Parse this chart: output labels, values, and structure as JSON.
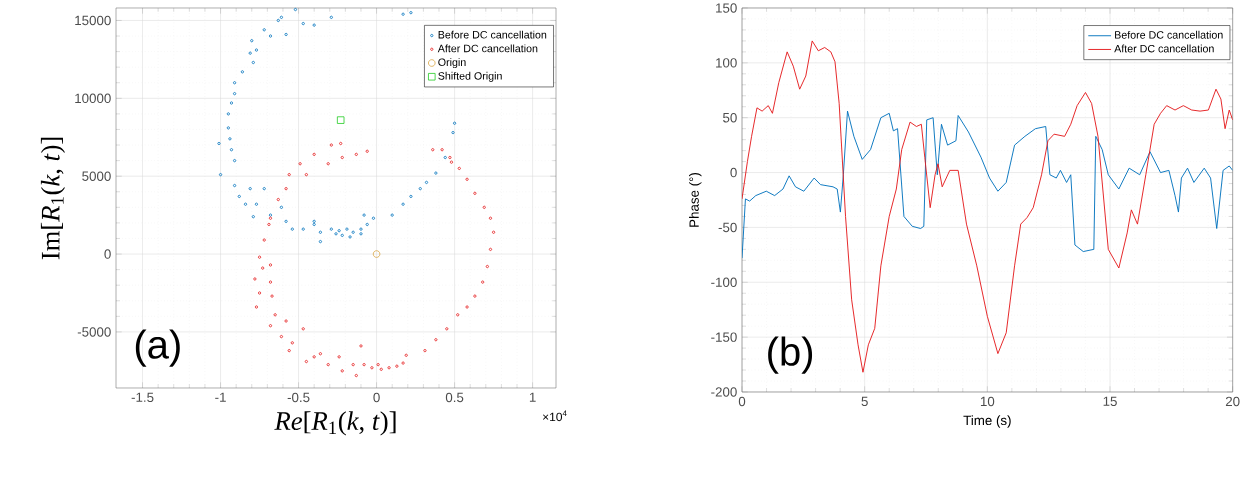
{
  "chart_data": [
    {
      "type": "scatter",
      "xlabel": "*Re*[*R*$_{1}$(*k*, *t*)]",
      "ylabel": "Im[*R*$_{1}$(*k*, *t*)]",
      "xlim": [
        -1.67,
        1.15
      ],
      "ylim": [
        -8600,
        15800
      ],
      "xticks": [
        -1.5,
        -1,
        -0.5,
        0,
        0.5,
        1
      ],
      "yticks": [
        -5000,
        0,
        5000,
        10000,
        15000
      ],
      "grid": true,
      "legend": "top right",
      "annotations": [
        "(a)",
        "×10$^{4}$"
      ],
      "series": [
        {
          "name": "Before DC cancellation",
          "color": "#0072bd",
          "marker": "circle",
          "x": [
            -0.52,
            -0.61,
            -0.47,
            -0.29,
            0.17,
            -0.72,
            -0.8,
            -0.81,
            -0.79,
            -0.86,
            -0.91,
            -0.91,
            -0.93,
            -0.95,
            -0.95,
            -0.94,
            -0.93,
            -0.91,
            -1.01,
            -1.0,
            -0.91,
            -0.88,
            -0.81,
            -0.72,
            -0.84,
            -0.77,
            -0.79,
            -0.61,
            -0.58,
            -0.54,
            -0.47,
            -0.4,
            -0.36,
            -0.29,
            -0.24,
            -0.19,
            -0.15,
            -0.1,
            -0.06,
            -0.02,
            0.1,
            0.17,
            0.22,
            0.28,
            0.32,
            0.38,
            0.44,
            0.49,
            0.5,
            -0.22,
            -0.26,
            -0.36,
            -0.17,
            -0.1,
            -0.4,
            -0.68,
            -0.08,
            -0.63,
            -0.68,
            -0.77,
            -0.58,
            0.22,
            -0.4
          ],
          "values": [
            15700,
            15200,
            14800,
            15200,
            15400,
            14400,
            13700,
            12900,
            12300,
            11700,
            11000,
            10300,
            9700,
            9000,
            8100,
            7400,
            6700,
            6000,
            7100,
            5100,
            4400,
            3700,
            4200,
            4200,
            3200,
            3200,
            2400,
            3000,
            2100,
            1600,
            1600,
            1900,
            1400,
            1600,
            1500,
            1600,
            1400,
            1600,
            1900,
            2300,
            2500,
            3200,
            3700,
            4200,
            4600,
            5200,
            6200,
            7800,
            8400,
            1200,
            1300,
            800,
            1100,
            1300,
            2100,
            2500,
            2500,
            15000,
            14000,
            13100,
            14100,
            15500,
            14700
          ]
        },
        {
          "name": "After DC cancellation",
          "color": "#e41a1c",
          "marker": "circle",
          "x": [
            -0.29,
            -0.23,
            -0.4,
            -0.31,
            -0.22,
            -0.13,
            -0.06,
            -0.49,
            -0.45,
            -0.56,
            -0.58,
            -0.63,
            -0.68,
            -0.69,
            -0.72,
            -0.75,
            -0.73,
            -0.68,
            -0.78,
            -0.67,
            -0.65,
            -0.77,
            -0.68,
            -0.58,
            -0.61,
            -0.54,
            -0.47,
            -0.56,
            -0.45,
            -0.36,
            -0.31,
            -0.24,
            -0.22,
            -0.15,
            -0.13,
            -0.08,
            -0.03,
            0.01,
            0.03,
            0.08,
            0.13,
            0.17,
            0.19,
            0.31,
            0.38,
            0.45,
            0.52,
            0.58,
            0.63,
            0.68,
            0.71,
            0.73,
            0.75,
            0.73,
            0.69,
            0.63,
            0.58,
            0.53,
            0.48,
            0.42,
            0.36,
            0.47,
            -0.4,
            -0.1,
            -0.68,
            -0.75
          ],
          "values": [
            7000,
            7100,
            6400,
            5800,
            6200,
            6400,
            6600,
            5800,
            5100,
            5100,
            4200,
            3500,
            2300,
            1900,
            900,
            -200,
            -900,
            -1800,
            -1600,
            -2700,
            -3900,
            -3400,
            -4600,
            -4300,
            -5300,
            -5700,
            -4800,
            -6200,
            -6900,
            -6400,
            -7100,
            -6600,
            -7500,
            -7100,
            -7800,
            -7100,
            -7300,
            -7100,
            -7400,
            -7300,
            -7200,
            -7000,
            -6500,
            -6200,
            -5500,
            -4800,
            -3900,
            -3400,
            -2700,
            -1800,
            -800,
            300,
            1400,
            2300,
            3000,
            3900,
            4800,
            5500,
            5900,
            6700,
            6700,
            6200,
            -6600,
            -5900,
            -700,
            -2500
          ]
        },
        {
          "name": "Origin",
          "color": "#d9a441",
          "marker": "circle",
          "x": [
            0
          ],
          "values": [
            0
          ]
        },
        {
          "name": "Shifted Origin",
          "color": "#22cc22",
          "marker": "square",
          "x": [
            -0.23
          ],
          "values": [
            8600
          ]
        }
      ]
    },
    {
      "type": "line",
      "xlabel": "Time (s)",
      "ylabel": "Phase (°)",
      "xlim": [
        0,
        20
      ],
      "ylim": [
        -200,
        150
      ],
      "xticks": [
        0,
        5,
        10,
        15,
        20
      ],
      "yticks": [
        -200,
        -150,
        -100,
        -50,
        0,
        50,
        100,
        150
      ],
      "grid": true,
      "legend": "top right",
      "annotations": [
        "(b)"
      ],
      "series": [
        {
          "name": "Before DC cancellation",
          "color": "#0072bd",
          "x": [
            0,
            0.14,
            0.31,
            0.56,
            0.99,
            1.33,
            1.67,
            1.92,
            2.18,
            2.52,
            2.94,
            3.2,
            3.71,
            3.88,
            4.01,
            4.13,
            4.3,
            4.56,
            4.9,
            5.24,
            5.66,
            6.0,
            6.17,
            6.34,
            6.6,
            6.94,
            7.28,
            7.41,
            7.53,
            7.79,
            7.96,
            8.13,
            8.38,
            8.72,
            8.81,
            9.23,
            9.74,
            10.09,
            10.43,
            10.77,
            11.11,
            11.53,
            11.96,
            12.38,
            12.55,
            12.81,
            12.98,
            13.23,
            13.4,
            13.57,
            13.91,
            14.34,
            14.42,
            14.68,
            14.93,
            15.36,
            15.78,
            16.21,
            16.63,
            17.06,
            17.4,
            17.65,
            17.79,
            17.91,
            18.16,
            18.42,
            18.84,
            19.1,
            19.35,
            19.61,
            19.86,
            20.0
          ],
          "values": [
            -78,
            -24,
            -26,
            -21,
            -17,
            -21,
            -15,
            -3,
            -13,
            -17,
            -5,
            -11,
            -13,
            -15,
            -36,
            -2,
            56,
            33,
            12,
            21,
            50,
            54,
            38,
            40,
            -40,
            -49,
            -51,
            -49,
            48,
            50,
            -2,
            44,
            25,
            29,
            52,
            37,
            14,
            -5,
            -17,
            -9,
            25,
            33,
            40,
            42,
            -2,
            -5,
            2,
            -9,
            -2,
            -66,
            -72,
            -70,
            33,
            21,
            -2,
            -15,
            4,
            -2,
            19,
            0,
            2,
            -21,
            -36,
            -5,
            4,
            -9,
            4,
            -5,
            -51,
            2,
            6,
            2
          ]
        },
        {
          "name": "After DC cancellation",
          "color": "#e41a1c",
          "x": [
            0,
            0.22,
            0.39,
            0.61,
            0.82,
            1.07,
            1.24,
            1.5,
            1.84,
            2.09,
            2.35,
            2.6,
            2.86,
            3.11,
            3.37,
            3.62,
            3.79,
            3.96,
            4.22,
            4.47,
            4.73,
            4.93,
            5.15,
            5.41,
            5.66,
            6.0,
            6.29,
            6.51,
            6.85,
            7.11,
            7.31,
            7.45,
            7.67,
            7.87,
            7.99,
            8.16,
            8.47,
            8.81,
            9.15,
            9.57,
            10.0,
            10.43,
            10.77,
            11.11,
            11.36,
            11.62,
            11.87,
            12.21,
            12.47,
            12.72,
            13.15,
            13.4,
            13.66,
            14.0,
            14.25,
            14.51,
            14.93,
            15.36,
            15.7,
            15.87,
            16.12,
            16.46,
            16.8,
            17.06,
            17.31,
            17.65,
            17.99,
            18.33,
            18.67,
            19.01,
            19.32,
            19.52,
            19.69,
            19.86,
            20.0
          ],
          "values": [
            -24,
            10,
            33,
            59,
            56,
            61,
            54,
            82,
            110,
            97,
            76,
            88,
            120,
            111,
            114,
            110,
            101,
            63,
            -40,
            -116,
            -157,
            -182,
            -157,
            -142,
            -85,
            -40,
            -15,
            21,
            46,
            42,
            44,
            14,
            -32,
            -2,
            8,
            -13,
            2,
            2,
            -47,
            -85,
            -131,
            -165,
            -146,
            -85,
            -47,
            -41,
            -32,
            -2,
            29,
            35,
            33,
            44,
            61,
            73,
            63,
            33,
            -70,
            -87,
            -55,
            -34,
            -47,
            -2,
            44,
            54,
            61,
            57,
            61,
            57,
            56,
            57,
            76,
            67,
            40,
            57,
            48
          ]
        }
      ]
    }
  ]
}
